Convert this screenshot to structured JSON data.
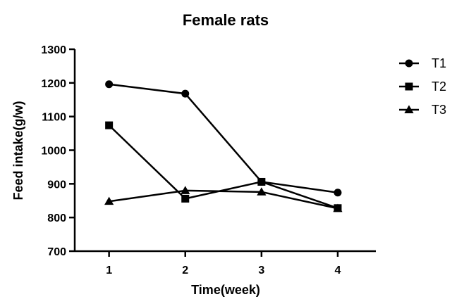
{
  "chart_data": {
    "type": "line",
    "title": "Female rats",
    "xlabel": "Time(week)",
    "ylabel": "Feed intake(g/w)",
    "x": [
      1,
      2,
      3,
      4
    ],
    "x_tick_labels": [
      "1",
      "2",
      "3",
      "4"
    ],
    "xlim": [
      0.55,
      4.5
    ],
    "ylim": [
      700,
      1300
    ],
    "y_ticks": [
      700,
      800,
      900,
      1000,
      1100,
      1200,
      1300
    ],
    "y_tick_labels": [
      "700",
      "800",
      "900",
      "1000",
      "1100",
      "1200",
      "1300"
    ],
    "grid": false,
    "legend_position": "right",
    "series": [
      {
        "name": "T1",
        "marker": "circle",
        "color": "#000000",
        "values": [
          1196,
          1168,
          906,
          874
        ]
      },
      {
        "name": "T2",
        "marker": "square",
        "color": "#000000",
        "values": [
          1074,
          856,
          906,
          828
        ]
      },
      {
        "name": "T3",
        "marker": "triangle",
        "color": "#000000",
        "values": [
          848,
          880,
          876,
          827
        ]
      }
    ]
  }
}
